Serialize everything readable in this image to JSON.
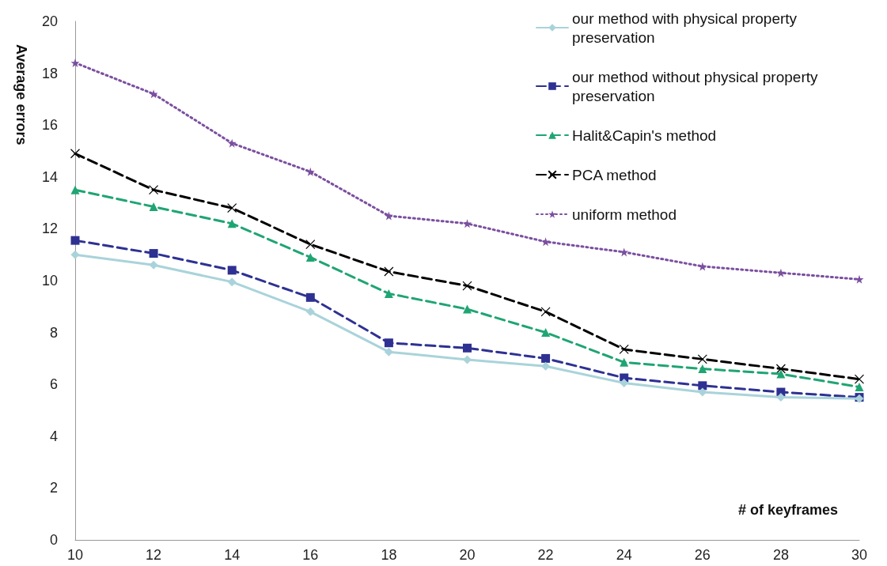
{
  "chart_data": {
    "type": "line",
    "xlabel": "# of keyframes",
    "ylabel": "Average errors",
    "x": [
      10,
      12,
      14,
      16,
      18,
      20,
      22,
      24,
      26,
      28,
      30
    ],
    "xlim": [
      10,
      30
    ],
    "xticks": [
      10,
      12,
      14,
      16,
      18,
      20,
      22,
      24,
      26,
      28,
      30
    ],
    "ylim": [
      0,
      20
    ],
    "yticks": [
      0,
      2,
      4,
      6,
      8,
      10,
      12,
      14,
      16,
      18,
      20
    ],
    "grid": false,
    "legend": "top right",
    "series": [
      {
        "name": "our method with physical property preservation",
        "color": "#a9d3da",
        "marker": "diamond",
        "line_style": "solid",
        "values": [
          11.0,
          10.6,
          9.95,
          8.8,
          7.25,
          6.95,
          6.7,
          6.05,
          5.7,
          5.5,
          5.45
        ]
      },
      {
        "name": "our method without physical property preservation",
        "color": "#2e3192",
        "marker": "square",
        "line_style": "dashed",
        "values": [
          11.55,
          11.05,
          10.4,
          9.35,
          7.6,
          7.4,
          7.0,
          6.25,
          5.95,
          5.7,
          5.5
        ]
      },
      {
        "name": "Halit&Capin's method",
        "color": "#1fa573",
        "marker": "triangle",
        "line_style": "dashed",
        "values": [
          13.5,
          12.85,
          12.2,
          10.9,
          9.5,
          8.9,
          8.0,
          6.85,
          6.6,
          6.4,
          5.9
        ]
      },
      {
        "name": "PCA method",
        "color": "#000000",
        "marker": "cross",
        "line_style": "dashed",
        "values": [
          14.9,
          13.5,
          12.8,
          11.4,
          10.35,
          9.8,
          8.8,
          7.35,
          6.97,
          6.6,
          6.2
        ]
      },
      {
        "name": "uniform method",
        "color": "#7b4fa0",
        "marker": "star",
        "line_style": "dotted",
        "values": [
          18.4,
          17.2,
          15.3,
          14.2,
          12.5,
          12.2,
          11.5,
          11.1,
          10.55,
          10.3,
          10.05
        ]
      }
    ]
  }
}
